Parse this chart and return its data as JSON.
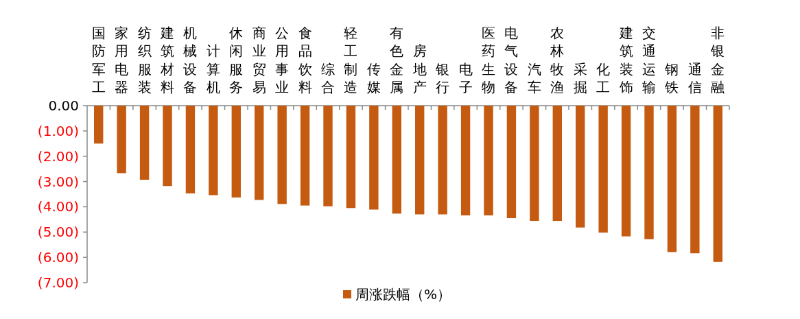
{
  "chart_data": {
    "type": "bar",
    "categories": [
      "国防军工",
      "家用电器",
      "纺织服装",
      "建筑材料",
      "机械设备",
      "计算机",
      "休闲服务",
      "商业贸易",
      "公用事业",
      "食品饮料",
      "综合",
      "轻工制造",
      "传媒",
      "有色金属",
      "房地产",
      "银行",
      "电子",
      "医药生物",
      "电气设备",
      "汽车",
      "农林牧渔",
      "采掘",
      "化工",
      "建筑装饰",
      "交通运输",
      "钢铁",
      "通信",
      "非银金融"
    ],
    "series": [
      {
        "name": "周涨跌幅（%）",
        "color": "#c55a11",
        "values": [
          -1.5,
          -2.67,
          -2.93,
          -3.18,
          -3.47,
          -3.54,
          -3.63,
          -3.73,
          -3.89,
          -3.95,
          -3.98,
          -4.05,
          -4.11,
          -4.27,
          -4.3,
          -4.3,
          -4.34,
          -4.34,
          -4.45,
          -4.56,
          -4.56,
          -4.82,
          -5.02,
          -5.17,
          -5.28,
          -5.79,
          -5.84,
          -6.18
        ]
      }
    ],
    "ylim": [
      -7,
      0
    ],
    "yticks": [
      {
        "value": 0,
        "label": "0.00"
      },
      {
        "value": -1,
        "label": "(1.00)"
      },
      {
        "value": -2,
        "label": "(2.00)"
      },
      {
        "value": -3,
        "label": "(3.00)"
      },
      {
        "value": -4,
        "label": "(4.00)"
      },
      {
        "value": -5,
        "label": "(5.00)"
      },
      {
        "value": -6,
        "label": "(6.00)"
      },
      {
        "value": -7,
        "label": "(7.00)"
      }
    ],
    "grid": false,
    "legend": "bottom"
  }
}
